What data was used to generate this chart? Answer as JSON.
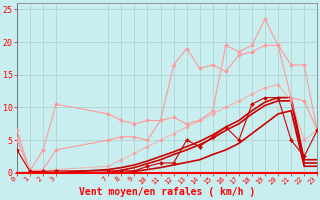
{
  "background_color": "#c8eef0",
  "grid_color": "#aacccc",
  "xlabel": "Vent moyen/en rafales ( km/h )",
  "xlim": [
    0,
    23
  ],
  "ylim": [
    0,
    26
  ],
  "yticks": [
    0,
    5,
    10,
    15,
    20,
    25
  ],
  "xtick_positions": [
    0,
    1,
    2,
    3,
    7,
    8,
    9,
    10,
    11,
    12,
    13,
    14,
    15,
    16,
    17,
    18,
    19,
    20,
    21,
    22,
    23
  ],
  "xtick_labels": [
    "0",
    "1",
    "2",
    "3",
    "7",
    "8",
    "9",
    "10",
    "11",
    "12",
    "13",
    "14",
    "15",
    "16",
    "17",
    "18",
    "19",
    "20",
    "21",
    "22",
    "23"
  ],
  "series": [
    {
      "x": [
        0,
        1,
        2,
        3,
        7,
        8,
        9,
        10,
        11,
        12,
        13,
        14,
        15,
        16,
        17,
        18,
        19,
        20,
        21,
        22,
        23
      ],
      "y": [
        6.5,
        0.3,
        3.5,
        10.5,
        9.0,
        8.0,
        7.5,
        8.0,
        8.0,
        8.5,
        7.5,
        8.0,
        9.5,
        19.5,
        18.5,
        19.5,
        23.5,
        19.5,
        16.5,
        16.5,
        6.5
      ],
      "color": "#ff9999",
      "lw": 0.8,
      "marker": "D",
      "ms": 2.0,
      "alpha": 1.0
    },
    {
      "x": [
        0,
        1,
        2,
        3,
        7,
        8,
        9,
        10,
        11,
        12,
        13,
        14,
        15,
        16,
        17,
        18,
        19,
        20,
        21,
        22,
        23
      ],
      "y": [
        5.0,
        0.3,
        0.5,
        3.5,
        5.0,
        5.5,
        5.5,
        5.0,
        8.0,
        16.5,
        19.0,
        16.0,
        16.5,
        15.5,
        18.0,
        18.5,
        19.5,
        19.5,
        11.5,
        11.0,
        6.5
      ],
      "color": "#ff9999",
      "lw": 0.8,
      "marker": "D",
      "ms": 2.0,
      "alpha": 1.0
    },
    {
      "x": [
        0,
        1,
        2,
        3,
        7,
        8,
        9,
        10,
        11,
        12,
        13,
        14,
        15,
        16,
        17,
        18,
        19,
        20,
        21,
        22,
        23
      ],
      "y": [
        5.5,
        0.3,
        0.3,
        0.5,
        1.0,
        2.0,
        3.0,
        4.0,
        5.0,
        6.0,
        7.0,
        8.0,
        9.0,
        10.0,
        11.0,
        12.0,
        13.0,
        13.5,
        11.0,
        5.0,
        6.5
      ],
      "color": "#ff9999",
      "lw": 0.8,
      "marker": "D",
      "ms": 2.0,
      "alpha": 0.7
    },
    {
      "x": [
        0,
        1,
        2,
        3,
        7,
        8,
        9,
        10,
        11,
        12,
        13,
        14,
        15,
        16,
        17,
        18,
        19,
        20,
        21,
        22,
        23
      ],
      "y": [
        3.5,
        0.2,
        0.2,
        0.3,
        0.3,
        0.3,
        0.3,
        1.0,
        1.5,
        1.5,
        5.0,
        4.0,
        5.5,
        7.0,
        5.0,
        10.5,
        11.5,
        11.5,
        5.0,
        2.5,
        6.5
      ],
      "color": "#cc0000",
      "lw": 0.8,
      "marker": "D",
      "ms": 2.0,
      "alpha": 1.0
    },
    {
      "x": [
        0,
        1,
        2,
        3,
        7,
        8,
        9,
        10,
        11,
        12,
        13,
        14,
        15,
        16,
        17,
        18,
        19,
        20,
        21,
        22,
        23
      ],
      "y": [
        0.0,
        0.0,
        0.0,
        0.0,
        0.5,
        0.8,
        1.2,
        1.8,
        2.5,
        3.2,
        4.0,
        4.8,
        5.8,
        7.0,
        8.0,
        9.5,
        10.8,
        11.5,
        11.5,
        2.0,
        2.0
      ],
      "color": "#cc0000",
      "lw": 1.2,
      "marker": null,
      "ms": 0,
      "alpha": 1.0
    },
    {
      "x": [
        0,
        1,
        2,
        3,
        7,
        8,
        9,
        10,
        11,
        12,
        13,
        14,
        15,
        16,
        17,
        18,
        19,
        20,
        21,
        22,
        23
      ],
      "y": [
        0.0,
        0.0,
        0.0,
        0.0,
        0.0,
        0.4,
        0.8,
        1.4,
        2.0,
        2.8,
        3.5,
        4.3,
        5.3,
        6.5,
        7.5,
        9.0,
        10.3,
        11.0,
        11.0,
        1.5,
        1.5
      ],
      "color": "#cc0000",
      "lw": 1.2,
      "marker": null,
      "ms": 0,
      "alpha": 1.0
    },
    {
      "x": [
        0,
        1,
        2,
        3,
        7,
        8,
        9,
        10,
        11,
        12,
        13,
        14,
        15,
        16,
        17,
        18,
        19,
        20,
        21,
        22,
        23
      ],
      "y": [
        0.0,
        0.0,
        0.0,
        0.0,
        0.0,
        0.0,
        0.2,
        0.5,
        0.8,
        1.2,
        1.6,
        2.0,
        2.8,
        3.5,
        4.5,
        6.0,
        7.5,
        9.0,
        9.5,
        1.0,
        1.0
      ],
      "color": "#cc0000",
      "lw": 1.2,
      "marker": null,
      "ms": 0,
      "alpha": 1.0
    }
  ]
}
